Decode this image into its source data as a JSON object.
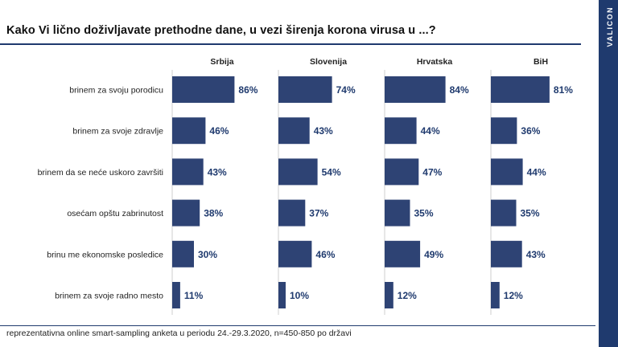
{
  "title": "Kako Vi lično doživljavate prethodne dane, u vezi širenja korona virusa u ...?",
  "brand": "VALICON",
  "footer": "reprezentativna online smart-sampling anketa u periodu  24.-29.3.2020,  n=450-850 po državi",
  "colors": {
    "bar": "#2e4374",
    "accent": "#1f3a6e"
  },
  "chart_data": {
    "type": "bar",
    "orientation": "horizontal",
    "unit": "%",
    "categories": [
      "brinem za svoju porodicu",
      "brinem za svoje zdravlje",
      "brinem da se neće uskoro završiti",
      "osećam opštu zabrinutost",
      "brinu me ekonomske posledice",
      "brinem za svoje radno mesto"
    ],
    "series": [
      {
        "name": "Srbija",
        "values": [
          86,
          46,
          43,
          38,
          30,
          11
        ]
      },
      {
        "name": "Slovenija",
        "values": [
          74,
          43,
          54,
          37,
          46,
          10
        ]
      },
      {
        "name": "Hrvatska",
        "values": [
          84,
          44,
          47,
          35,
          49,
          12
        ]
      },
      {
        "name": "BiH",
        "values": [
          81,
          36,
          44,
          35,
          43,
          12
        ]
      }
    ],
    "xlim": [
      0,
      100
    ],
    "grid": false,
    "legend": "column headers"
  }
}
